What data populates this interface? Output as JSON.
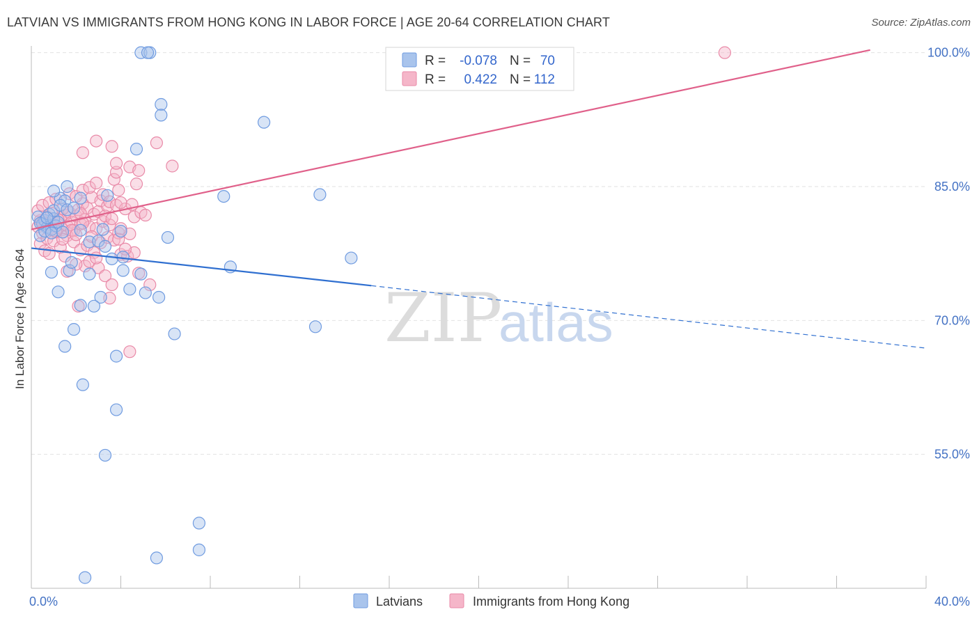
{
  "title": "LATVIAN VS IMMIGRANTS FROM HONG KONG IN LABOR FORCE | AGE 20-64 CORRELATION CHART",
  "source": "Source: ZipAtlas.com",
  "watermark": {
    "zip": "ZIP",
    "atlas": "atlas"
  },
  "colors": {
    "blue_fill": "#a9c4ec",
    "blue_stroke": "#6f9be0",
    "blue_line": "#2f6fd0",
    "pink_fill": "#f5b6c9",
    "pink_stroke": "#e98aa8",
    "pink_line": "#e0608a",
    "grid": "#e2e2e2",
    "axis_label": "#4472c4"
  },
  "legend": {
    "rows": [
      {
        "r_label": "R =",
        "r_value": "-0.078",
        "n_label": "N =",
        "n_value": "70"
      },
      {
        "r_label": "R =",
        "r_value": "0.422",
        "n_label": "N =",
        "n_value": "112"
      }
    ]
  },
  "bottom_legend": {
    "latvians": "Latvians",
    "hongkong": "Immigrants from Hong Kong"
  },
  "chart_data": {
    "type": "scatter",
    "title": "LATVIAN VS IMMIGRANTS FROM HONG KONG IN LABOR FORCE | AGE 20-64 CORRELATION CHART",
    "xlabel": "",
    "ylabel": "In Labor Force | Age 20-64",
    "xlim": [
      0,
      40
    ],
    "ylim": [
      40,
      102
    ],
    "x_tick_labels": [
      {
        "value": 0,
        "label": "0.0%"
      },
      {
        "value": 40,
        "label": "40.0%"
      }
    ],
    "y_tick_labels": [
      {
        "value": 100,
        "label": "100.0%"
      },
      {
        "value": 85,
        "label": "85.0%"
      },
      {
        "value": 70,
        "label": "70.0%"
      },
      {
        "value": 55,
        "label": "55.0%"
      }
    ],
    "x_minor_ticks": [
      0,
      4,
      8,
      12,
      16,
      20,
      24,
      28,
      32,
      36,
      40
    ],
    "y_gridlines": [
      85,
      70,
      55
    ],
    "series": [
      {
        "name": "Latvians",
        "r": -0.078,
        "n": 70,
        "trend": {
          "x0": 0,
          "y0": 78.1,
          "x1": 15.2,
          "y1": 73.9,
          "dash_to_x": 40,
          "dash_to_y": 66.9
        },
        "points": [
          [
            0.3,
            81.6
          ],
          [
            0.5,
            80.8
          ],
          [
            0.6,
            81.2
          ],
          [
            0.7,
            80.4
          ],
          [
            0.8,
            81.9
          ],
          [
            0.9,
            80.2
          ],
          [
            1.0,
            81.4
          ],
          [
            1.1,
            80.6
          ],
          [
            0.4,
            79.5
          ],
          [
            0.6,
            80.0
          ],
          [
            0.9,
            79.8
          ],
          [
            1.2,
            81.0
          ],
          [
            1.0,
            82.3
          ],
          [
            1.3,
            83.7
          ],
          [
            1.5,
            83.4
          ],
          [
            1.6,
            85.0
          ],
          [
            1.0,
            84.5
          ],
          [
            1.3,
            82.9
          ],
          [
            1.6,
            82.4
          ],
          [
            1.4,
            79.9
          ],
          [
            2.2,
            80.1
          ],
          [
            2.6,
            78.8
          ],
          [
            3.0,
            78.9
          ],
          [
            3.2,
            80.2
          ],
          [
            3.3,
            78.3
          ],
          [
            4.0,
            80.0
          ],
          [
            3.4,
            84.0
          ],
          [
            2.2,
            83.7
          ],
          [
            0.9,
            75.4
          ],
          [
            1.2,
            73.2
          ],
          [
            1.7,
            75.6
          ],
          [
            1.8,
            76.5
          ],
          [
            2.6,
            75.2
          ],
          [
            3.1,
            72.6
          ],
          [
            4.1,
            75.6
          ],
          [
            3.6,
            76.9
          ],
          [
            4.4,
            73.5
          ],
          [
            4.9,
            75.2
          ],
          [
            5.1,
            73.1
          ],
          [
            5.7,
            72.6
          ],
          [
            4.1,
            77.1
          ],
          [
            6.1,
            79.3
          ],
          [
            1.5,
            67.1
          ],
          [
            1.9,
            69.0
          ],
          [
            2.2,
            71.7
          ],
          [
            2.8,
            71.6
          ],
          [
            3.8,
            66.0
          ],
          [
            6.4,
            68.5
          ],
          [
            2.3,
            62.8
          ],
          [
            3.8,
            60.0
          ],
          [
            3.3,
            54.9
          ],
          [
            8.9,
            76.0
          ],
          [
            8.6,
            83.9
          ],
          [
            10.4,
            92.2
          ],
          [
            12.9,
            84.1
          ],
          [
            14.3,
            77.0
          ],
          [
            12.7,
            69.3
          ],
          [
            4.7,
            89.2
          ],
          [
            5.8,
            94.2
          ],
          [
            5.8,
            93.0
          ],
          [
            4.9,
            100.0
          ],
          [
            5.3,
            100.0
          ],
          [
            5.2,
            100.0
          ],
          [
            7.5,
            47.3
          ],
          [
            7.5,
            44.3
          ],
          [
            5.6,
            43.4
          ],
          [
            2.4,
            41.2
          ],
          [
            0.4,
            80.9
          ],
          [
            0.7,
            81.5
          ],
          [
            1.9,
            82.6
          ]
        ]
      },
      {
        "name": "Immigrants from Hong Kong",
        "r": 0.422,
        "n": 112,
        "trend": {
          "x0": 0,
          "y0": 80.2,
          "x1": 37.5,
          "y1": 100.3
        },
        "points": [
          [
            0.3,
            80.5
          ],
          [
            0.4,
            81.2
          ],
          [
            0.5,
            79.8
          ],
          [
            0.6,
            80.9
          ],
          [
            0.7,
            81.6
          ],
          [
            0.8,
            80.3
          ],
          [
            0.9,
            80.7
          ],
          [
            1.0,
            81.1
          ],
          [
            1.1,
            79.9
          ],
          [
            1.2,
            80.4
          ],
          [
            1.3,
            81.5
          ],
          [
            1.4,
            80.2
          ],
          [
            1.5,
            81.8
          ],
          [
            1.6,
            80.6
          ],
          [
            1.7,
            82.1
          ],
          [
            1.8,
            81.0
          ],
          [
            1.9,
            80.1
          ],
          [
            2.0,
            81.7
          ],
          [
            2.1,
            82.4
          ],
          [
            2.2,
            80.8
          ],
          [
            2.3,
            83.1
          ],
          [
            2.4,
            81.3
          ],
          [
            2.5,
            82.6
          ],
          [
            2.6,
            80.5
          ],
          [
            2.7,
            83.8
          ],
          [
            2.8,
            81.9
          ],
          [
            2.9,
            80.3
          ],
          [
            3.0,
            82.2
          ],
          [
            3.1,
            83.4
          ],
          [
            3.2,
            81.1
          ],
          [
            3.4,
            82.8
          ],
          [
            3.5,
            80.7
          ],
          [
            0.3,
            82.3
          ],
          [
            0.5,
            82.9
          ],
          [
            0.8,
            83.2
          ],
          [
            1.1,
            83.6
          ],
          [
            1.4,
            82.5
          ],
          [
            1.7,
            84.2
          ],
          [
            2.0,
            83.9
          ],
          [
            2.3,
            84.6
          ],
          [
            2.6,
            84.9
          ],
          [
            2.9,
            85.4
          ],
          [
            3.2,
            84.1
          ],
          [
            3.5,
            83.3
          ],
          [
            3.8,
            82.9
          ],
          [
            4.2,
            82.5
          ],
          [
            4.6,
            81.6
          ],
          [
            4.9,
            82.1
          ],
          [
            5.1,
            81.8
          ],
          [
            0.4,
            78.6
          ],
          [
            0.7,
            79.2
          ],
          [
            1.0,
            78.9
          ],
          [
            1.3,
            78.2
          ],
          [
            1.6,
            79.5
          ],
          [
            1.9,
            78.8
          ],
          [
            2.2,
            77.9
          ],
          [
            2.5,
            78.4
          ],
          [
            2.8,
            77.6
          ],
          [
            3.1,
            78.7
          ],
          [
            3.4,
            79.3
          ],
          [
            3.7,
            79.0
          ],
          [
            4.0,
            77.4
          ],
          [
            4.3,
            77.2
          ],
          [
            4.6,
            77.6
          ],
          [
            0.6,
            77.8
          ],
          [
            1.5,
            77.2
          ],
          [
            2.4,
            76.1
          ],
          [
            2.6,
            76.6
          ],
          [
            3.0,
            75.9
          ],
          [
            3.3,
            75.0
          ],
          [
            3.6,
            74.0
          ],
          [
            3.5,
            72.5
          ],
          [
            2.1,
            71.6
          ],
          [
            4.8,
            75.3
          ],
          [
            5.3,
            74.0
          ],
          [
            4.4,
            66.5
          ],
          [
            1.6,
            75.5
          ],
          [
            2.0,
            76.3
          ],
          [
            2.9,
            77.0
          ],
          [
            3.9,
            79.8
          ],
          [
            3.7,
            85.8
          ],
          [
            3.9,
            84.6
          ],
          [
            3.8,
            86.6
          ],
          [
            4.4,
            87.2
          ],
          [
            3.8,
            87.6
          ],
          [
            4.7,
            85.3
          ],
          [
            4.8,
            86.8
          ],
          [
            6.3,
            87.3
          ],
          [
            3.6,
            89.5
          ],
          [
            2.3,
            88.8
          ],
          [
            2.9,
            90.1
          ],
          [
            5.6,
            89.9
          ],
          [
            4.4,
            79.7
          ],
          [
            3.9,
            79.1
          ],
          [
            4.2,
            78.0
          ],
          [
            4.0,
            83.2
          ],
          [
            4.5,
            83.0
          ],
          [
            3.3,
            81.7
          ],
          [
            2.2,
            82.0
          ],
          [
            2.7,
            79.4
          ],
          [
            1.8,
            80.1
          ],
          [
            1.2,
            81.3
          ],
          [
            0.9,
            82.0
          ],
          [
            0.5,
            81.0
          ],
          [
            31.0,
            100.0
          ],
          [
            0.8,
            77.5
          ],
          [
            1.4,
            79.1
          ],
          [
            2.3,
            80.9
          ],
          [
            3.6,
            81.4
          ],
          [
            4.0,
            80.3
          ],
          [
            2.0,
            79.6
          ],
          [
            1.1,
            80.0
          ]
        ]
      }
    ]
  }
}
